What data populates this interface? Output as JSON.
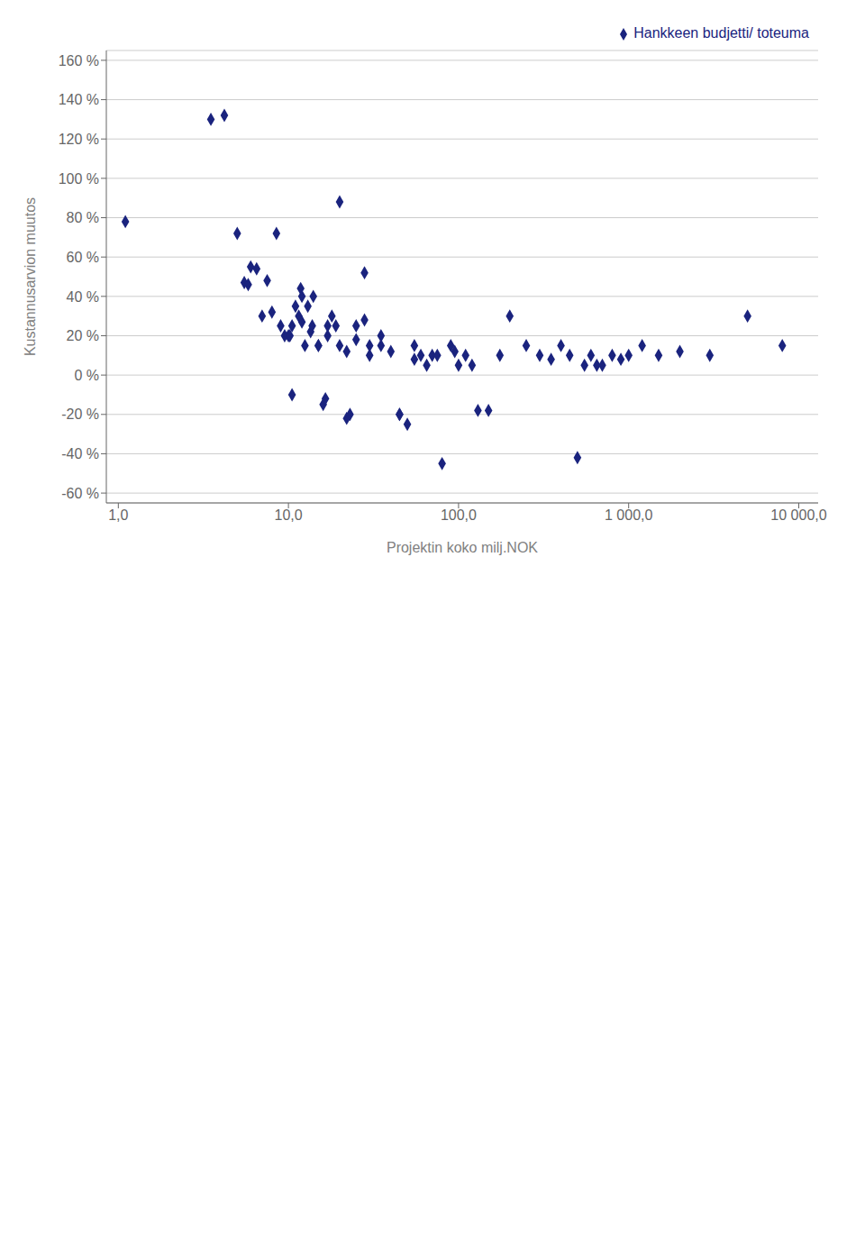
{
  "chart_data": {
    "type": "scatter",
    "x_label": "Projektin koko milj.NOK",
    "y_label": "Kustannusarvion muutos",
    "log": "x",
    "grid": "y",
    "legend": "upper right",
    "xlim": [
      0.85,
      13000
    ],
    "ylim": [
      -65,
      165
    ],
    "xticks": [
      {
        "value": 1,
        "label": "1,0"
      },
      {
        "value": 10,
        "label": "10,0"
      },
      {
        "value": 100,
        "label": "100,0"
      },
      {
        "value": 1000,
        "label": "1 000,0"
      },
      {
        "value": 10000,
        "label": "10 000,0"
      }
    ],
    "yticks": [
      {
        "value": -60,
        "label": "-60 %"
      },
      {
        "value": -40,
        "label": "-40 %"
      },
      {
        "value": -20,
        "label": "-20 %"
      },
      {
        "value": 0,
        "label": "0 %"
      },
      {
        "value": 20,
        "label": "20 %"
      },
      {
        "value": 40,
        "label": "40 %"
      },
      {
        "value": 60,
        "label": "60 %"
      },
      {
        "value": 80,
        "label": "80 %"
      },
      {
        "value": 100,
        "label": "100 %"
      },
      {
        "value": 120,
        "label": "120 %"
      },
      {
        "value": 140,
        "label": "140 %"
      },
      {
        "value": 160,
        "label": "160 %"
      }
    ],
    "x": [
      1.1,
      3.5,
      4.2,
      5.0,
      5.5,
      5.8,
      6.5,
      7.0,
      7.5,
      8.0,
      9.0,
      10.0,
      10.5,
      11.0,
      11.5,
      12.0,
      12.5,
      13.0,
      14.0,
      15.0,
      16.0,
      17.0,
      18.0,
      20.0,
      22.0,
      25.0,
      28.0,
      30.0,
      35.0,
      10.5,
      12.0,
      13.5,
      15.0,
      17.0,
      20.0,
      22.0,
      25.0,
      28.0,
      30.0,
      35.0,
      40.0,
      45.0,
      50.0,
      55.0,
      60.0,
      65.0,
      70.0,
      80.0,
      90.0,
      100.0,
      110.0,
      120.0,
      150.0,
      200.0,
      250.0,
      300.0,
      400.0,
      500.0,
      600.0,
      700.0,
      800.0,
      900.0,
      1000.0,
      1200.0,
      2000.0,
      5000.0,
      8000.0,
      6.0,
      8.5,
      9.5,
      10.2,
      11.8,
      13.8,
      16.5,
      19.0,
      23.0,
      45.0,
      55.0,
      75.0,
      95.0,
      130.0,
      175.0,
      350.0,
      450.0,
      550.0,
      650.0,
      1500.0,
      3000.0
    ],
    "series": [
      {
        "name": "Hankkeen budjetti/ toteuma",
        "color": "#1a237e",
        "marker": "diamond",
        "values": [
          78,
          130,
          132,
          72,
          47,
          46,
          54,
          30,
          48,
          32,
          25,
          20,
          -10,
          35,
          30,
          40,
          15,
          35,
          40,
          15,
          -15,
          25,
          30,
          88,
          -22,
          25,
          52,
          15,
          20,
          25,
          27,
          22,
          15,
          20,
          15,
          12,
          18,
          28,
          10,
          15,
          12,
          -20,
          -25,
          15,
          10,
          5,
          10,
          -45,
          15,
          5,
          10,
          5,
          -18,
          30,
          15,
          10,
          15,
          -42,
          10,
          5,
          10,
          8,
          10,
          15,
          12,
          30,
          15,
          55,
          72,
          20,
          20,
          44,
          25,
          -12,
          25,
          -20,
          -20,
          8,
          10,
          12,
          -18,
          10,
          8,
          10,
          5,
          5,
          10,
          10
        ]
      }
    ]
  }
}
